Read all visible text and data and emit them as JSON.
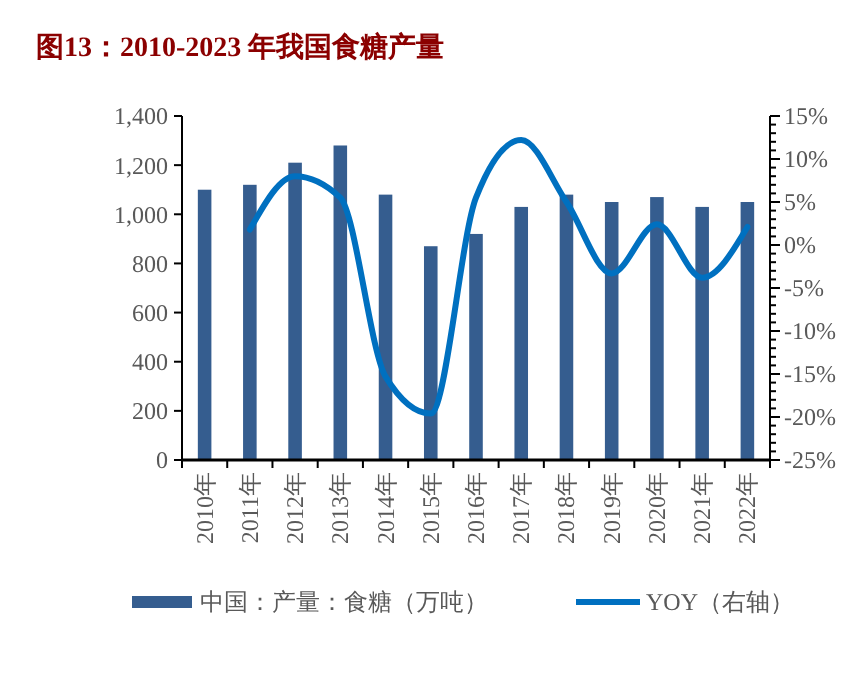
{
  "chart_data": {
    "type": "bar",
    "title": "图13：2010-2023 年我国食糖产量",
    "categories": [
      "2010年",
      "2011年",
      "2012年",
      "2013年",
      "2014年",
      "2015年",
      "2016年",
      "2017年",
      "2018年",
      "2019年",
      "2020年",
      "2021年",
      "2022年"
    ],
    "series": [
      {
        "name": "中国：产量：食糖（万吨）",
        "color": "#355d8f",
        "values": [
          1100,
          1120,
          1210,
          1280,
          1080,
          870,
          920,
          1030,
          1080,
          1050,
          1070,
          1030,
          1050
        ]
      },
      {
        "name": "YOY（右轴）",
        "type": "line",
        "axis": "y2",
        "color": "#0070c0",
        "values": [
          null,
          1.8,
          8.0,
          5.5,
          -15.3,
          -19.6,
          5.5,
          12.2,
          5.0,
          -3.3,
          2.4,
          -3.8,
          2.1
        ]
      }
    ],
    "ylim": [
      0,
      1400
    ],
    "yticks": [
      {
        "value": 0,
        "label": "0"
      },
      {
        "value": 200,
        "label": "200"
      },
      {
        "value": 400,
        "label": "400"
      },
      {
        "value": 600,
        "label": "600"
      },
      {
        "value": 800,
        "label": "800"
      },
      {
        "value": 1000,
        "label": "1,000"
      },
      {
        "value": 1200,
        "label": "1,200"
      },
      {
        "value": 1400,
        "label": "1,400"
      }
    ],
    "y2lim": [
      -25,
      15
    ],
    "y2ticks": [
      {
        "value": -25,
        "label": "-25%"
      },
      {
        "value": -20,
        "label": "-20%"
      },
      {
        "value": -15,
        "label": "-15%"
      },
      {
        "value": -10,
        "label": "-10%"
      },
      {
        "value": -5,
        "label": "-5%"
      },
      {
        "value": 0,
        "label": "0%"
      },
      {
        "value": 5,
        "label": "5%"
      },
      {
        "value": 10,
        "label": "10%"
      },
      {
        "value": 15,
        "label": "15%"
      }
    ],
    "grid": false,
    "legend": "bottom",
    "marker": "none",
    "line_style": "solid"
  }
}
